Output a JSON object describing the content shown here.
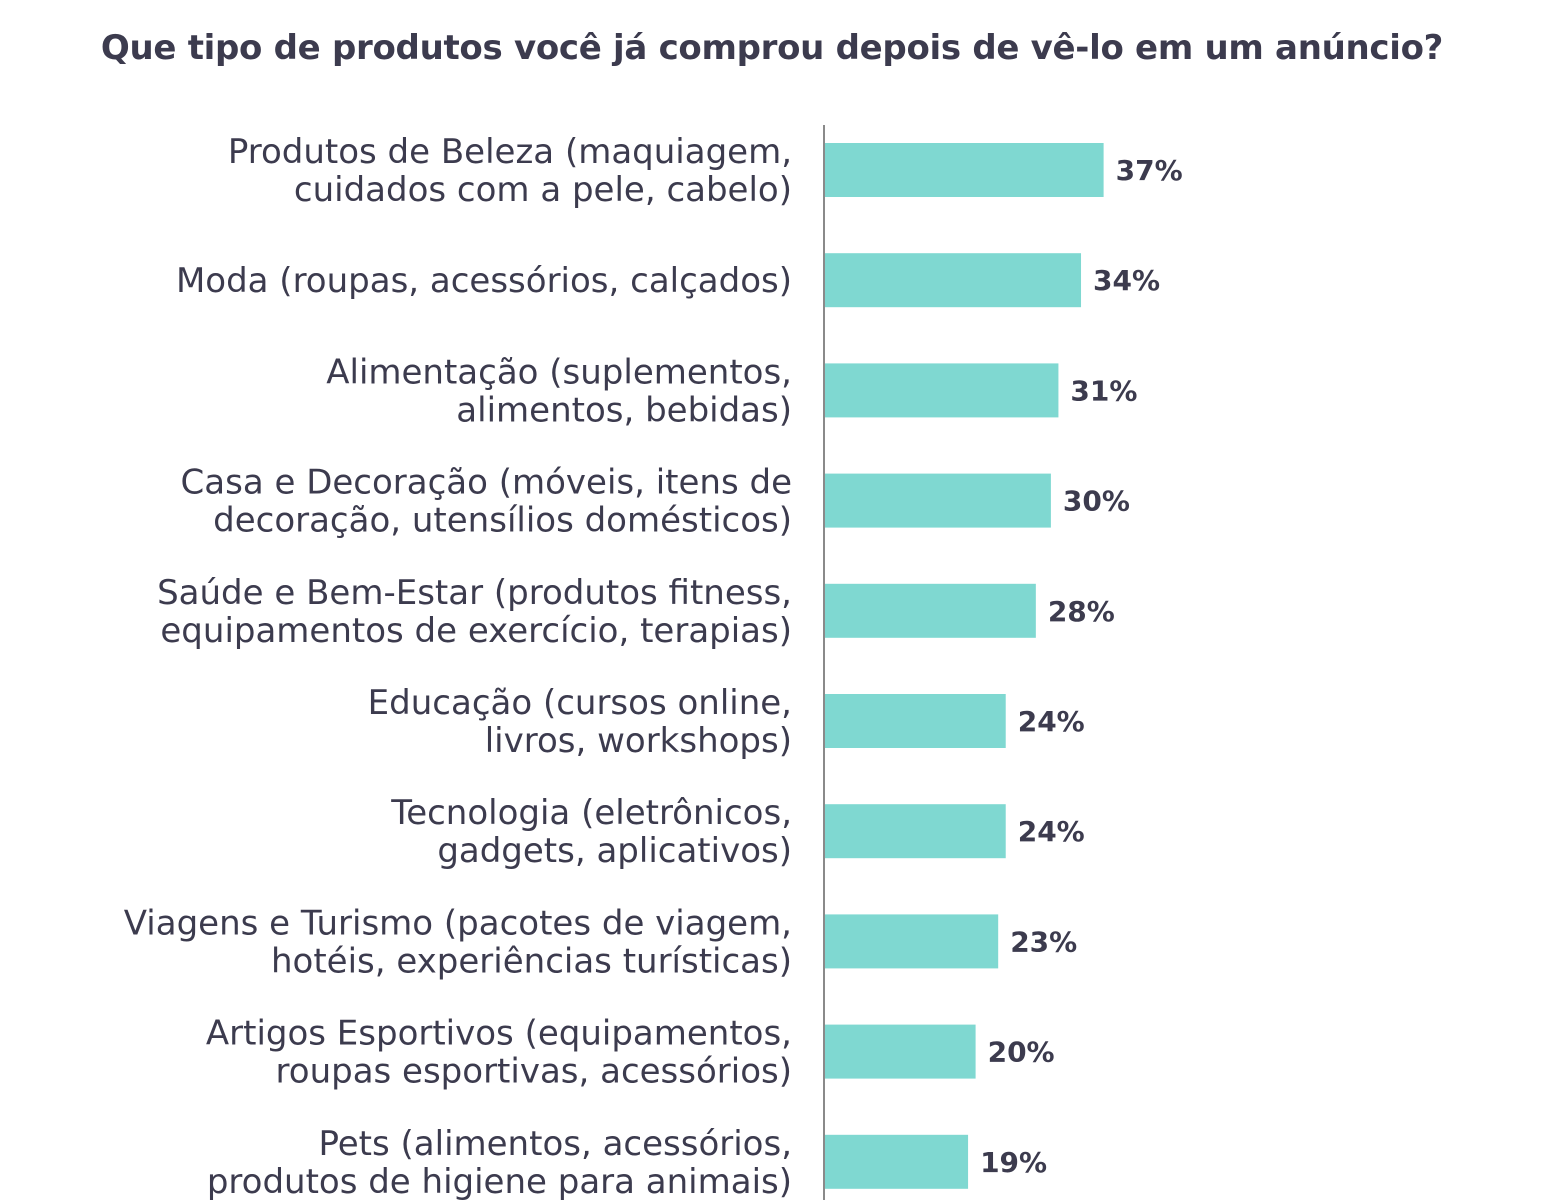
{
  "chart_data": {
    "type": "bar",
    "orientation": "horizontal",
    "title": "Que tipo de produtos você já comprou depois de vê-lo em um anúncio?",
    "categories": [
      [
        "Produtos de Beleza (maquiagem,",
        "cuidados com a pele, cabelo)"
      ],
      [
        "Moda (roupas, acessórios, calçados)"
      ],
      [
        "Alimentação (suplementos,",
        "alimentos, bebidas)"
      ],
      [
        "Casa e Decoração (móveis, itens de",
        "decoração, utensílios domésticos)"
      ],
      [
        "Saúde e Bem-Estar (produtos fitness,",
        "equipamentos de exercício, terapias)"
      ],
      [
        "Educação (cursos online,",
        "livros, workshops)"
      ],
      [
        "Tecnologia (eletrônicos,",
        "gadgets, aplicativos)"
      ],
      [
        "Viagens e Turismo (pacotes de viagem,",
        "hotéis, experiências turísticas)"
      ],
      [
        "Artigos Esportivos (equipamentos,",
        "roupas esportivas, acessórios)"
      ],
      [
        "Pets (alimentos, acessórios,",
        "produtos de higiene para animais)"
      ]
    ],
    "values": [
      37,
      34,
      31,
      30,
      28,
      24,
      24,
      23,
      20,
      19
    ],
    "value_labels": [
      "37%",
      "34%",
      "31%",
      "30%",
      "28%",
      "24%",
      "24%",
      "23%",
      "20%",
      "19%"
    ],
    "unit": "%",
    "xlim": [
      0,
      100
    ],
    "grid": false,
    "legend": "none",
    "bar_color": "#7fd8d1",
    "axis_color": "#8a8a8a",
    "text_color": "#3c3b4e"
  }
}
